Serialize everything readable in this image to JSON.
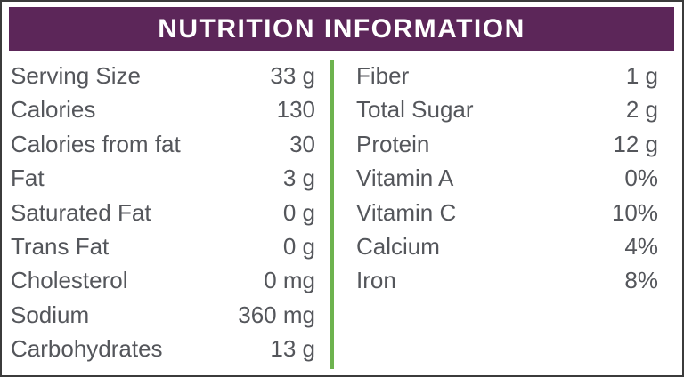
{
  "header": {
    "title": "NUTRITION INFORMATION"
  },
  "colors": {
    "header_bg": "#5c2659",
    "header_fg": "#ffffff",
    "divider_green": "#6db34e",
    "text": "#54565b",
    "border": "#3b3b3b",
    "background": "#ffffff"
  },
  "table": {
    "left_rows": [
      {
        "label": "Serving Size",
        "value": "33 g"
      },
      {
        "label": "Calories",
        "value": "130"
      },
      {
        "label": "Calories from fat",
        "value": "30"
      },
      {
        "label": "Fat",
        "value": "3 g"
      },
      {
        "label": "Saturated Fat",
        "value": "0 g"
      },
      {
        "label": "Trans Fat",
        "value": "0 g"
      },
      {
        "label": "Cholesterol",
        "value": "0 mg"
      },
      {
        "label": "Sodium",
        "value": "360 mg"
      },
      {
        "label": "Carbohydrates",
        "value": "13 g"
      }
    ],
    "right_rows": [
      {
        "label": "Fiber",
        "value": "1 g"
      },
      {
        "label": "Total Sugar",
        "value": "2 g"
      },
      {
        "label": "Protein",
        "value": "12 g"
      },
      {
        "label": "Vitamin A",
        "value": "0%"
      },
      {
        "label": "Vitamin C",
        "value": "10%"
      },
      {
        "label": "Calcium",
        "value": "4%"
      },
      {
        "label": "Iron",
        "value": "8%"
      }
    ]
  }
}
